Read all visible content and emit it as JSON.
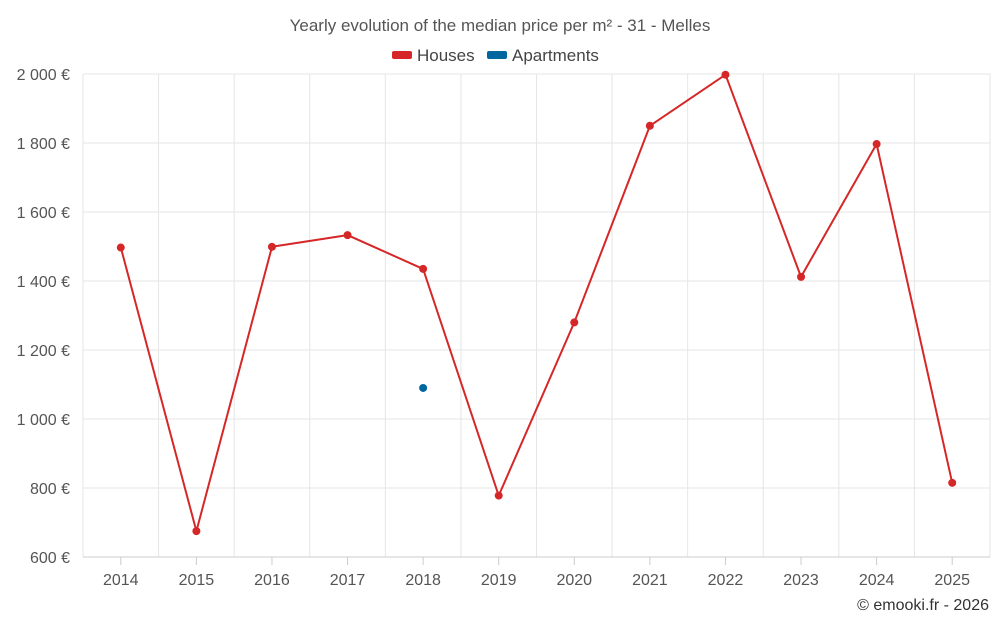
{
  "chart_data": {
    "type": "line",
    "title": "Yearly evolution of the median price per m² - 31 - Melles",
    "categories": [
      "2014",
      "2015",
      "2016",
      "2017",
      "2018",
      "2019",
      "2020",
      "2021",
      "2022",
      "2023",
      "2024",
      "2025"
    ],
    "series": [
      {
        "name": "Houses",
        "color": "#d62728",
        "values": [
          1497,
          675,
          1499,
          1533,
          1435,
          778,
          1280,
          1850,
          1998,
          1412,
          1797,
          815
        ]
      },
      {
        "name": "Apartments",
        "color": "#00679e",
        "values": [
          null,
          null,
          null,
          null,
          1090,
          null,
          null,
          null,
          null,
          null,
          null,
          null
        ]
      }
    ],
    "y_ticks": [
      "600 €",
      "800 €",
      "1 000 €",
      "1 200 €",
      "1 400 €",
      "1 600 €",
      "1 800 €",
      "2 000 €"
    ],
    "ylim": [
      600,
      2000
    ],
    "xlabel": "",
    "ylabel": "",
    "grid": true,
    "legend": "top-center"
  },
  "credit": "© emooki.fr - 2026"
}
